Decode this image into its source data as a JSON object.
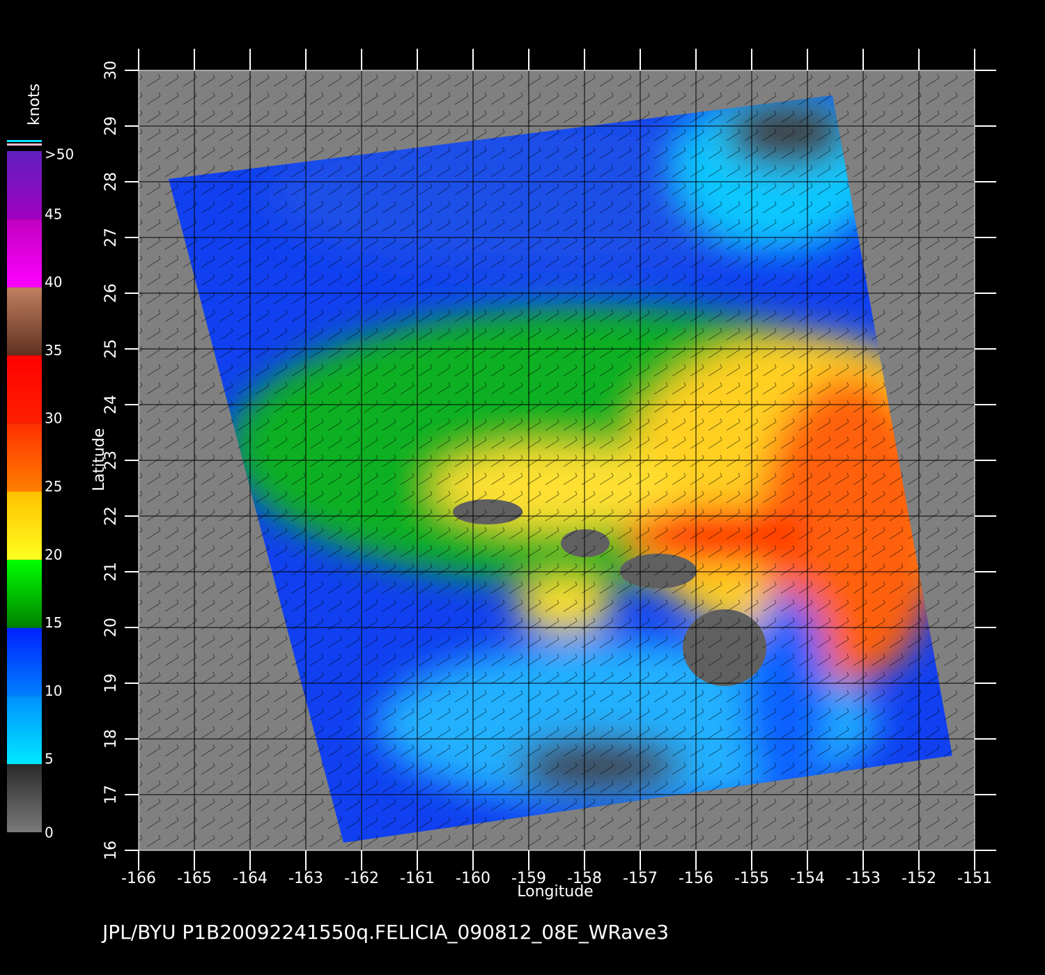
{
  "chart_data": {
    "type": "map",
    "xlabel": "Longitude",
    "ylabel": "Latitude",
    "footer": "JPL/BYU  P1B20092241550q.FELICIA_090812_08E_WRave3",
    "xlim": [
      -166,
      -151
    ],
    "ylim": [
      16,
      30
    ],
    "xticks": [
      -166,
      -165,
      -164,
      -163,
      -162,
      -161,
      -160,
      -159,
      -158,
      -157,
      -156,
      -155,
      -154,
      -153,
      -152,
      -151
    ],
    "yticks": [
      16,
      17,
      18,
      19,
      20,
      21,
      22,
      23,
      24,
      25,
      26,
      27,
      28,
      29,
      30
    ],
    "grid": true,
    "colorbar": {
      "title": "knots",
      "lim": [
        0,
        50
      ],
      "ticks": [
        0,
        5,
        10,
        15,
        20,
        25,
        30,
        35,
        40,
        45,
        {
          "value": 50,
          "label": ">50"
        }
      ],
      "colors": [
        [
          "#7a7a7a",
          "#2a2a2a"
        ],
        [
          "#00e8ff",
          "#0090ff"
        ],
        [
          "#0080ff",
          "#0020ff"
        ],
        [
          "#008000",
          "#00ff00"
        ],
        [
          "#ffff20",
          "#ffc000"
        ],
        [
          "#ff8000",
          "#ff3000"
        ],
        [
          "#ff2000",
          "#ff0000"
        ],
        [
          "#603020",
          "#c08060"
        ],
        [
          "#ff00ff",
          "#c000c0"
        ],
        [
          "#a000c0",
          "#6020c0"
        ]
      ]
    }
  }
}
